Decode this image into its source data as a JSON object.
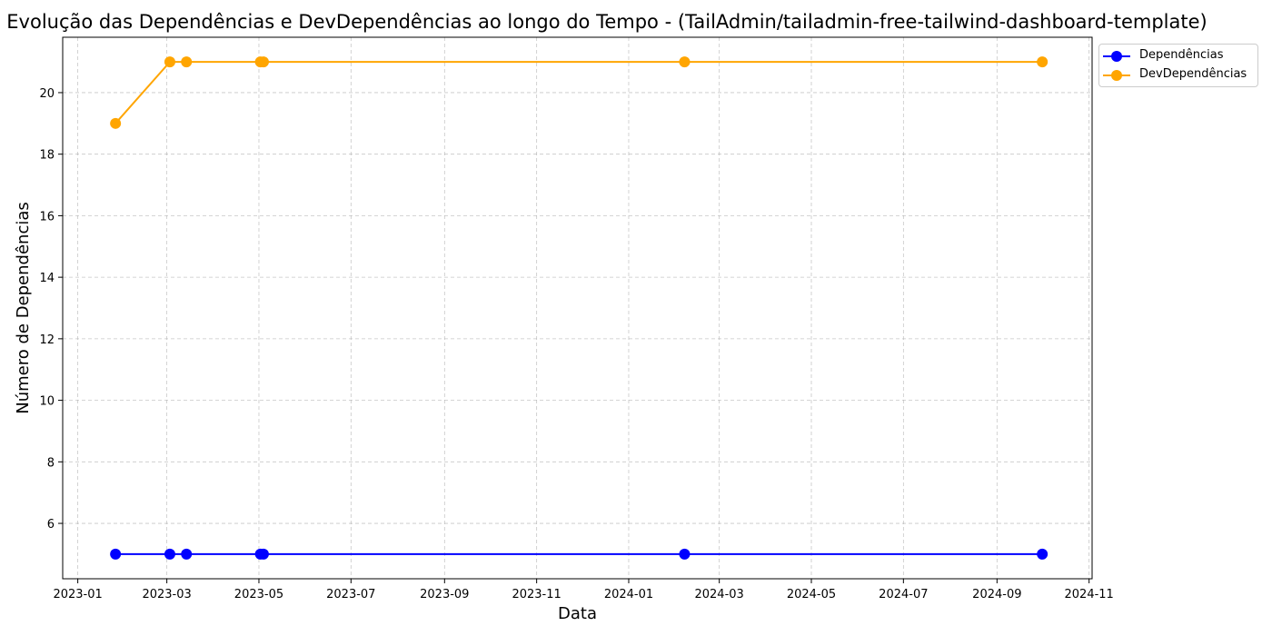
{
  "chart_data": {
    "type": "line",
    "title": "Evolução das Dependências e DevDependências ao longo do Tempo - (TailAdmin/tailadmin-free-tailwind-dashboard-template)",
    "xlabel": "Data",
    "ylabel": "Número de Dependências",
    "x_ticks": [
      "2023-01",
      "2023-03",
      "2023-05",
      "2023-07",
      "2023-09",
      "2023-11",
      "2024-01",
      "2024-03",
      "2024-05",
      "2024-07",
      "2024-09",
      "2024-11"
    ],
    "y_ticks": [
      6,
      8,
      10,
      12,
      14,
      16,
      18,
      20
    ],
    "xlim": [
      "2022-12-22",
      "2024-11-03"
    ],
    "ylim": [
      4.2,
      21.8
    ],
    "x": [
      "2023-01-26",
      "2023-03-03",
      "2023-03-14",
      "2023-05-02",
      "2023-05-04",
      "2024-02-07",
      "2024-10-01"
    ],
    "series": [
      {
        "name": "Dependências",
        "color": "#0000ff",
        "values": [
          5,
          5,
          5,
          5,
          5,
          5,
          5
        ]
      },
      {
        "name": "DevDependências",
        "color": "#ffa500",
        "values": [
          19,
          21,
          21,
          21,
          21,
          21,
          21
        ]
      }
    ],
    "grid": true,
    "grid_style": "dashed",
    "legend_position": "outside-top-right",
    "marker": "circle"
  }
}
